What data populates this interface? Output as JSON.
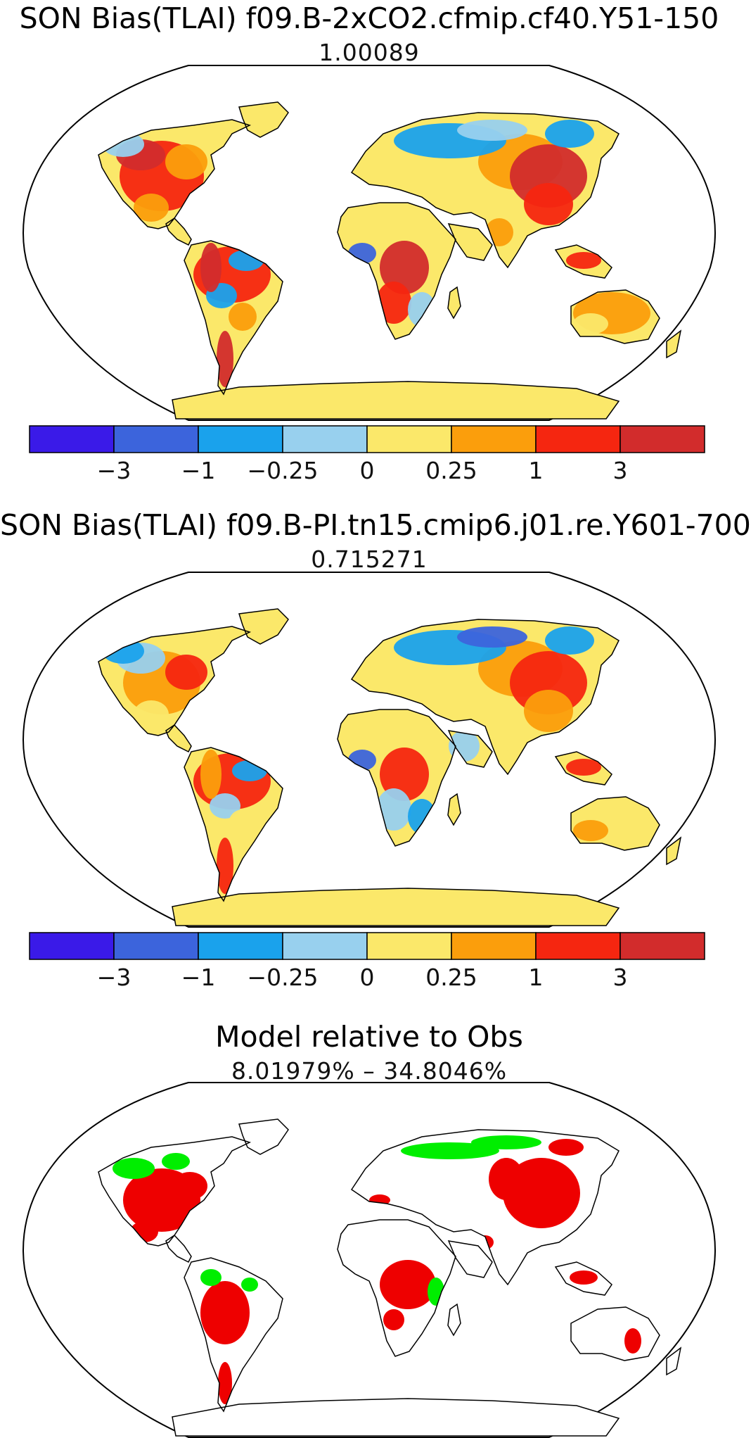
{
  "panels": [
    {
      "title": "SON Bias(TLAI) f09.B-2xCO2.cfmip.cf40.Y51-150",
      "subtitle": "1.00089"
    },
    {
      "title": "SON Bias(TLAI) f09.B-PI.tn15.cmip6.j01.re.Y601-700",
      "subtitle": "0.715271"
    },
    {
      "title": "Model relative to Obs",
      "subtitle": "8.01979% – 34.8046%"
    }
  ],
  "colorbar": {
    "colors": [
      "#3a1ae8",
      "#3c64dc",
      "#1aa2ec",
      "#98d0ee",
      "#fbe86a",
      "#fb9e0c",
      "#f52610",
      "#d22c2c"
    ],
    "tick_labels": [
      "−3",
      "−1",
      "−0.25",
      "0",
      "0.25",
      "1",
      "3"
    ]
  },
  "relative_colors": {
    "better": "#00ee00",
    "worse": "#ee0000"
  }
}
